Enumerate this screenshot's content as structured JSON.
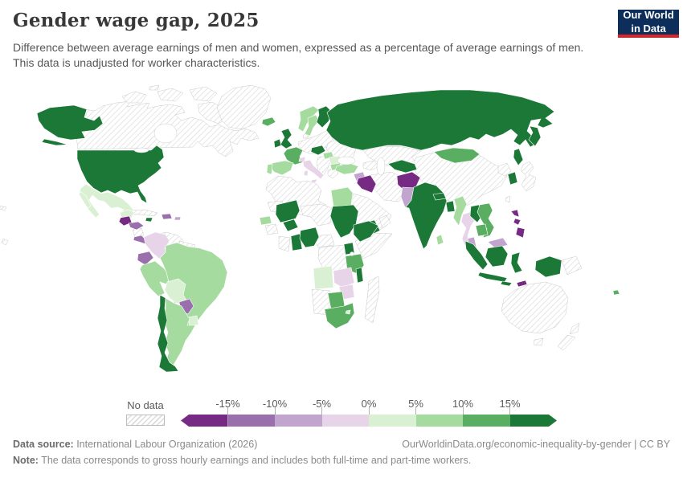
{
  "header": {
    "title": "Gender wage gap, 2025",
    "subtitle": "Difference between average earnings of men and women, expressed as a percentage of average earnings of men. This data is unadjusted for worker characteristics."
  },
  "logo": {
    "line1": "Our World",
    "line2": "in Data",
    "bg_color": "#0d2e5a",
    "accent_color": "#dc2327"
  },
  "legend": {
    "no_data_label": "No data",
    "tick_labels": [
      "-15%",
      "-10%",
      "-5%",
      "0%",
      "5%",
      "10%",
      "15%"
    ]
  },
  "footer": {
    "source_label": "Data source:",
    "source_text": " International Labour Organization (2026)",
    "link_text": "OurWorldinData.org/economic-inequality-by-gender | CC BY",
    "note_label": "Note:",
    "note_text": " The data corresponds to gross hourly earnings and includes both full-time and part-time workers."
  },
  "chart_data": {
    "type": "heatmap",
    "subtype": "choropleth-world-map",
    "title": "Gender wage gap, 2025",
    "unit": "%",
    "no_data_style": "hatched",
    "legend_range": [
      -20,
      20
    ],
    "bands": [
      {
        "label": "< -15%",
        "color": "#762a83"
      },
      {
        "label": "-15% to -10%",
        "color": "#9970ab"
      },
      {
        "label": "-10% to -5%",
        "color": "#c2a5cf"
      },
      {
        "label": "-5% to 0%",
        "color": "#e7d4e8"
      },
      {
        "label": "0% to 5%",
        "color": "#d9f0d3"
      },
      {
        "label": "5% to 10%",
        "color": "#a6dba0"
      },
      {
        "label": "10% to 15%",
        "color": "#5aae61"
      },
      {
        "label": "> 15%",
        "color": "#1b7837"
      }
    ],
    "countries": {
      "United States": "> 15%",
      "Canada": "No data",
      "Greenland": "No data",
      "Iceland": "10% to 15%",
      "Mexico": "0% to 5%",
      "Guatemala": "< -15%",
      "Honduras": "-15% to -10%",
      "Nicaragua": "No data",
      "Costa Rica & Panama": "-15% to -10%",
      "Cuba": "No data",
      "Jamaica": "> 15%",
      "Dominican Republic": "-15% to -10%",
      "Puerto Rico": "-10% to -5%",
      "Colombia": "-5% to 0%",
      "Venezuela": "No data",
      "Guyana & Suriname": "No data",
      "Ecuador": "-15% to -10%",
      "Peru": "5% to 10%",
      "Brazil": "5% to 10%",
      "Bolivia": "0% to 5%",
      "Paraguay": "-15% to -10%",
      "Uruguay": "0% to 5%",
      "Argentina": "5% to 10%",
      "Chile": "> 15%",
      "United Kingdom": "> 15%",
      "Ireland": "> 15%",
      "Norway": "5% to 10%",
      "Sweden": "5% to 10%",
      "Finland": "> 15%",
      "Denmark": "No data",
      "Central Europe": "No data",
      "Ukraine & Belarus": "No data",
      "Balkans": "No data",
      "Greece": "No data",
      "France": "10% to 15%",
      "Austria": "> 15%",
      "Hungary": "5% to 10%",
      "Romania": "0% to 5%",
      "Bulgaria": "5% to 10%",
      "Italy": "-5% to 0%",
      "Switzerland": "-5% to 0%",
      "Spain": "5% to 10%",
      "Portugal": "5% to 10%",
      "Turkey": "5% to 10%",
      "Russia": "> 15%",
      "North Africa": "No data",
      "Mauritania": "No data",
      "Niger & Chad": "No data",
      "Guinea": "No data",
      "Ivory Coast": "No data",
      "Cameroon & Central Africa": "No data",
      "DR Congo": "No data",
      "Kenya & Somalia": "No data",
      "Namibia": "No data",
      "Madagascar": "No data",
      "Senegal": "5% to 10%",
      "Mali": "> 15%",
      "Burkina Faso": "> 15%",
      "Ghana": "> 15%",
      "Nigeria": "> 15%",
      "Egypt": "5% to 10%",
      "Sudan": "> 15%",
      "Ethiopia": "> 15%",
      "Uganda": "> 15%",
      "Tanzania": "10% to 15%",
      "Angola": "0% to 5%",
      "Zambia": "-5% to 0%",
      "Malawi": "> 15%",
      "Zimbabwe": "-5% to 0%",
      "Botswana": "10% to 15%",
      "South Africa": "10% to 15%",
      "Eswatini": "0% to 5%",
      "Saudi Arabia": "No data",
      "Yemen": "> 15%",
      "Oman": "No data",
      "Syria": "-10% to -5%",
      "Iraq": "< -15%",
      "Iran": "No data",
      "Kazakhstan & Central Asia": "No data",
      "Caucasus": "No data",
      "Uzbekistan & Turkmenistan": "> 15%",
      "Afghanistan": "< -15%",
      "Pakistan": "-10% to -5%",
      "India": "> 15%",
      "Nepal": "> 15%",
      "Bangladesh": "> 15%",
      "Sri Lanka": "5% to 10%",
      "Myanmar": "5% to 10%",
      "Thailand": "-5% to 0%",
      "Laos": "> 15%",
      "Vietnam": "10% to 15%",
      "Cambodia": "10% to 15%",
      "Malaysia": "-10% to -5%",
      "China": "No data",
      "Mongolia": "10% to 15%",
      "North Korea": "No data",
      "South Korea": "> 15%",
      "Japan": "No data",
      "Taiwan": "No data",
      "Philippines": "< -15%",
      "Indonesia": "> 15%",
      "Timor-Leste": "< -15%",
      "Papua New Guinea": "No data",
      "Australia": "No data",
      "New Zealand": "No data",
      "Fiji": "10% to 15%",
      "Pacific Islands": "No data"
    }
  }
}
